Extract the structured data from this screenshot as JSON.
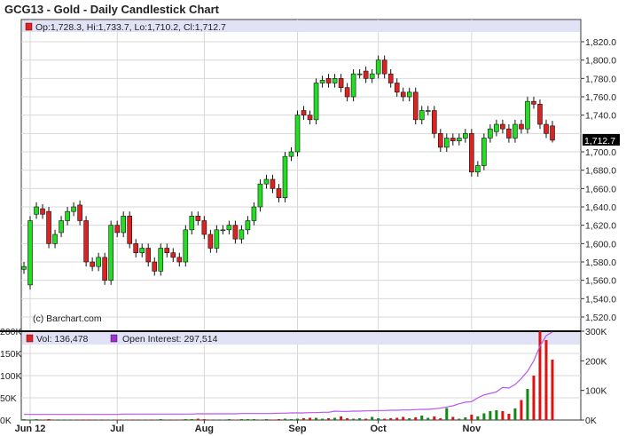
{
  "title": "GCG13 - Gold - Daily Candlestick Chart",
  "colors": {
    "up": "#22dd22",
    "down": "#dd2222",
    "oi_line": "#bb55ee",
    "legend_band": "#e2e2f6",
    "grid": "#d8d8d8"
  },
  "chart_data": {
    "type": "candlestick",
    "title": "GCG13 - Gold - Daily Candlestick Chart",
    "price_legend": "Op:1,728.3, Hi:1,733.7, Lo:1,710.2, Cl:1,712.7",
    "last_price_label": "1,712.7",
    "last_price": 1712.7,
    "watermark": "(c) Barchart.com",
    "price_ylim": [
      1508,
      1832
    ],
    "price_ticks": [
      {
        "v": 1820,
        "label": "1,820.0"
      },
      {
        "v": 1800,
        "label": "1,800.0"
      },
      {
        "v": 1780,
        "label": "1,780.0"
      },
      {
        "v": 1760,
        "label": "1,760.0"
      },
      {
        "v": 1740,
        "label": "1,740.0"
      },
      {
        "v": 1700,
        "label": "1,700.0"
      },
      {
        "v": 1680,
        "label": "1,680.0"
      },
      {
        "v": 1660,
        "label": "1,660.0"
      },
      {
        "v": 1640,
        "label": "1,640.0"
      },
      {
        "v": 1620,
        "label": "1,620.0"
      },
      {
        "v": 1600,
        "label": "1,600.0"
      },
      {
        "v": 1580,
        "label": "1,580.0"
      },
      {
        "v": 1560,
        "label": "1,560.0"
      },
      {
        "v": 1540,
        "label": "1,540.0"
      },
      {
        "v": 1520,
        "label": "1,520.0"
      }
    ],
    "x_ticks": [
      {
        "label": "Jun 12",
        "bar": 1
      },
      {
        "label": "Jul",
        "bar": 15
      },
      {
        "label": "Aug",
        "bar": 29
      },
      {
        "label": "Sep",
        "bar": 44
      },
      {
        "label": "Oct",
        "bar": 57
      },
      {
        "label": "Nov",
        "bar": 72
      }
    ],
    "open": [
      1572,
      1555,
      1632,
      1638,
      1635,
      1600,
      1612,
      1625,
      1635,
      1642,
      1625,
      1580,
      1575,
      1585,
      1560,
      1620,
      1612,
      1630,
      1600,
      1590,
      1595,
      1580,
      1570,
      1595,
      1590,
      1585,
      1580,
      1615,
      1630,
      1625,
      1610,
      1595,
      1615,
      1615,
      1620,
      1605,
      1615,
      1625,
      1640,
      1665,
      1670,
      1660,
      1650,
      1695,
      1700,
      1745,
      1740,
      1735,
      1775,
      1780,
      1775,
      1780,
      1770,
      1760,
      1785,
      1788,
      1780,
      1785,
      1800,
      1785,
      1775,
      1765,
      1760,
      1765,
      1735,
      1745,
      1745,
      1720,
      1705,
      1715,
      1712,
      1715,
      1720,
      1678,
      1685,
      1715,
      1722,
      1730,
      1725,
      1715,
      1730,
      1725,
      1755,
      1752,
      1730,
      1728.3
    ],
    "close": [
      1575,
      1625,
      1640,
      1632,
      1600,
      1610,
      1625,
      1635,
      1640,
      1625,
      1580,
      1575,
      1585,
      1560,
      1620,
      1612,
      1630,
      1600,
      1590,
      1595,
      1580,
      1570,
      1595,
      1590,
      1585,
      1580,
      1615,
      1630,
      1625,
      1610,
      1595,
      1615,
      1615,
      1620,
      1605,
      1615,
      1625,
      1640,
      1665,
      1670,
      1660,
      1650,
      1695,
      1700,
      1740,
      1740,
      1735,
      1775,
      1778,
      1775,
      1780,
      1770,
      1760,
      1785,
      1785,
      1780,
      1785,
      1800,
      1785,
      1775,
      1765,
      1760,
      1765,
      1735,
      1745,
      1745,
      1720,
      1705,
      1715,
      1712,
      1715,
      1720,
      1678,
      1685,
      1715,
      1725,
      1730,
      1725,
      1715,
      1730,
      1725,
      1755,
      1752,
      1730,
      1720,
      1712.7
    ],
    "last_high": 1733.7,
    "last_low": 1710.2,
    "volume_legend": "Vol: 136,478",
    "oi_legend": "Open Interest: 297,514",
    "volume_k": [
      2,
      1,
      2,
      1,
      2,
      1,
      1,
      1,
      1,
      1,
      1,
      1,
      1,
      1,
      1,
      1,
      1,
      1,
      1,
      1,
      1,
      1,
      2,
      1,
      1,
      1,
      2,
      2,
      3,
      2,
      1,
      1,
      1,
      2,
      1,
      2,
      2,
      2,
      1,
      2,
      1,
      2,
      3,
      2,
      3,
      4,
      5,
      5,
      3,
      4,
      5,
      8,
      4,
      3,
      4,
      3,
      7,
      4,
      3,
      4,
      5,
      7,
      4,
      6,
      10,
      5,
      8,
      4,
      27,
      7,
      3,
      6,
      12,
      8,
      15,
      20,
      22,
      20,
      14,
      26,
      45,
      70,
      100,
      200,
      180,
      136
    ],
    "open_interest_k": [
      19,
      19,
      19,
      19,
      19,
      19,
      19,
      19,
      19,
      19,
      19,
      19,
      19,
      19,
      19,
      19,
      20,
      20,
      20,
      20,
      20,
      20,
      20,
      20,
      20,
      20,
      20,
      20,
      21,
      21,
      21,
      21,
      21,
      21,
      21,
      22,
      22,
      22,
      22,
      22,
      22,
      23,
      23,
      24,
      24,
      24,
      25,
      25,
      26,
      26,
      30,
      29,
      29,
      30,
      30,
      31,
      31,
      32,
      32,
      33,
      33,
      34,
      34,
      35,
      36,
      36,
      38,
      40,
      44,
      48,
      55,
      60,
      62,
      75,
      85,
      90,
      95,
      110,
      108,
      120,
      140,
      165,
      200,
      250,
      285,
      297.5
    ],
    "volume_ylim": [
      0,
      200
    ],
    "volume_ticks": [
      "200K",
      "150K",
      "100K",
      "50K",
      "0K"
    ],
    "oi_ylim": [
      0,
      300
    ],
    "oi_ticks": [
      "300K",
      "200K",
      "100K",
      "0K"
    ],
    "grid": true
  }
}
